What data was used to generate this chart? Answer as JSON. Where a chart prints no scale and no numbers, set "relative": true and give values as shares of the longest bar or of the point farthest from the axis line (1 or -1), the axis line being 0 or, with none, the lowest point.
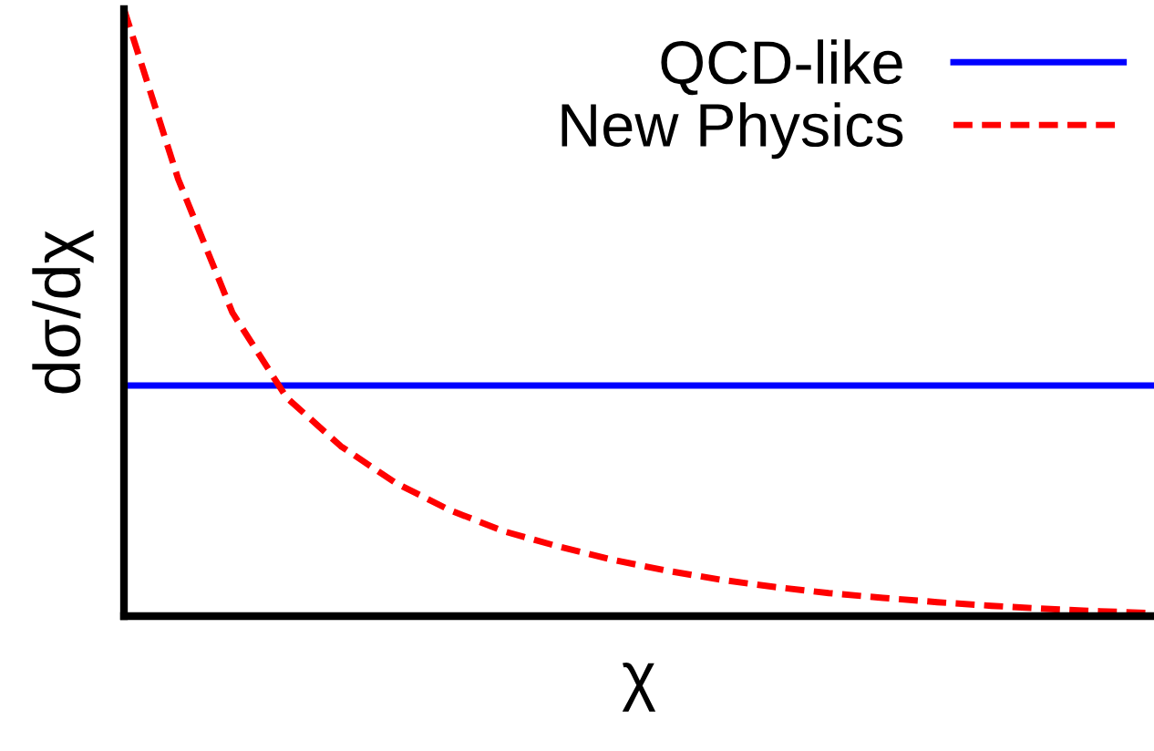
{
  "chart_data": {
    "type": "line",
    "relative": true,
    "xlabel": "χ",
    "ylabel": "dσ/dχ",
    "categories": [
      null,
      null,
      null,
      null,
      null,
      null,
      null,
      null,
      null,
      null,
      null,
      null,
      null,
      null,
      null,
      null,
      null,
      null,
      null,
      null
    ],
    "series": [
      {
        "name": "QCD-like",
        "color": "#0000ff",
        "line_style": "solid",
        "values": [
          0.38,
          0.38,
          0.38,
          0.38,
          0.38,
          0.38,
          0.38,
          0.38,
          0.38,
          0.38,
          0.38,
          0.38,
          0.38,
          0.38,
          0.38,
          0.38,
          0.38,
          0.38,
          0.38,
          0.38
        ]
      },
      {
        "name": "New Physics",
        "color": "#ff0000",
        "line_style": "dashed",
        "values": [
          1.0,
          0.72,
          0.5,
          0.36,
          0.28,
          0.22,
          0.175,
          0.14,
          0.115,
          0.093,
          0.075,
          0.06,
          0.048,
          0.038,
          0.03,
          0.023,
          0.017,
          0.012,
          0.008,
          0.005
        ]
      }
    ],
    "legend": "top right",
    "grid": false,
    "marker": "none"
  }
}
